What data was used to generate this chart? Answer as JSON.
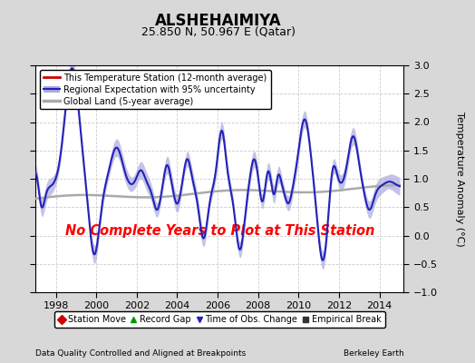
{
  "title": "ALSHEHAIMIYA",
  "subtitle": "25.850 N, 50.967 E (Qatar)",
  "ylabel": "Temperature Anomaly (°C)",
  "xlim": [
    1997.0,
    2015.2
  ],
  "ylim": [
    -1.0,
    3.0
  ],
  "yticks": [
    -1,
    -0.5,
    0,
    0.5,
    1,
    1.5,
    2,
    2.5,
    3
  ],
  "xticks": [
    1998,
    2000,
    2002,
    2004,
    2006,
    2008,
    2010,
    2012,
    2014
  ],
  "no_data_text": "No Complete Years to Plot at This Station",
  "no_data_color": "#ff0000",
  "background_color": "#d8d8d8",
  "plot_bg_color": "#ffffff",
  "regional_color": "#2222bb",
  "regional_fill_color": "#aaaadd",
  "global_land_color": "#aaaaaa",
  "station_color": "#cc0000",
  "footer_left": "Data Quality Controlled and Aligned at Breakpoints",
  "footer_right": "Berkeley Earth",
  "legend1_entries": [
    {
      "label": "This Temperature Station (12-month average)",
      "color": "#cc0000",
      "lw": 2
    },
    {
      "label": "Regional Expectation with 95% uncertainty",
      "color": "#2222bb",
      "lw": 2
    },
    {
      "label": "Global Land (5-year average)",
      "color": "#aaaaaa",
      "lw": 2
    }
  ],
  "legend2_entries": [
    {
      "label": "Station Move",
      "marker": "D",
      "color": "#cc0000"
    },
    {
      "label": "Record Gap",
      "marker": "^",
      "color": "#009900"
    },
    {
      "label": "Time of Obs. Change",
      "marker": "v",
      "color": "#2222bb"
    },
    {
      "label": "Empirical Break",
      "marker": "s",
      "color": "#333333"
    }
  ]
}
